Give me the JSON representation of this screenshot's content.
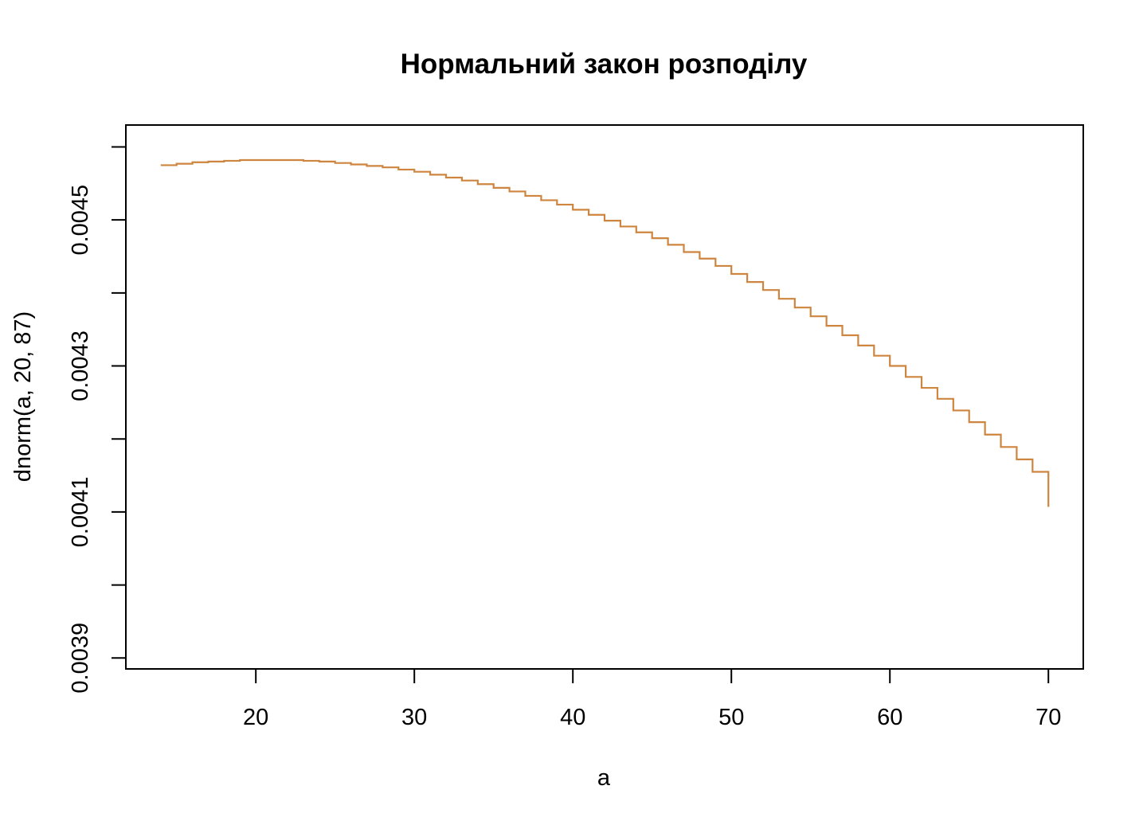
{
  "chart_data": {
    "type": "line",
    "style": "step",
    "title": "Нормальний закон розподілу",
    "xlabel": "a",
    "ylabel": "dnorm(a, 20, 87)",
    "xlim": [
      11.8,
      72.2
    ],
    "ylim": [
      0.003885,
      0.00463
    ],
    "x_ticks": [
      20,
      30,
      40,
      50,
      60,
      70
    ],
    "x_tick_labels": [
      "20",
      "30",
      "40",
      "50",
      "60",
      "70"
    ],
    "y_ticks": [
      0.0039,
      0.004,
      0.0041,
      0.0042,
      0.0043,
      0.0044,
      0.0045,
      0.0046
    ],
    "y_tick_labels": [
      "0.0039",
      "",
      "0.0041",
      "",
      "0.0043",
      "",
      "0.0045",
      ""
    ],
    "grid": false,
    "legend": "none",
    "line_color": "#cd853f",
    "series": [
      {
        "x": [
          14,
          15,
          16,
          17,
          18,
          19,
          20,
          21,
          22,
          23,
          24,
          25,
          26,
          27,
          28,
          29,
          30,
          31,
          32,
          33,
          34,
          35,
          36,
          37,
          38,
          39,
          40,
          41,
          42,
          43,
          44,
          45,
          46,
          47,
          48,
          49,
          50,
          51,
          52,
          53,
          54,
          55,
          56,
          57,
          58,
          59,
          60,
          61,
          62,
          63,
          64,
          65,
          66,
          67,
          68,
          69,
          70
        ],
        "values": [
          0.004575,
          0.004577,
          0.004579,
          0.00458,
          0.004581,
          0.004582,
          0.004582,
          0.004582,
          0.004582,
          0.004581,
          0.00458,
          0.004578,
          0.004576,
          0.004574,
          0.004572,
          0.004569,
          0.004566,
          0.004562,
          0.004558,
          0.004554,
          0.004549,
          0.004544,
          0.004539,
          0.004533,
          0.004527,
          0.004521,
          0.004514,
          0.004507,
          0.004499,
          0.004491,
          0.004483,
          0.004475,
          0.004466,
          0.004456,
          0.004447,
          0.004437,
          0.004426,
          0.004415,
          0.004404,
          0.004392,
          0.00438,
          0.004368,
          0.004355,
          0.004342,
          0.004328,
          0.004314,
          0.0043,
          0.004285,
          0.00427,
          0.004255,
          0.004239,
          0.004223,
          0.004206,
          0.004189,
          0.004172,
          0.004155,
          0.004137
        ]
      }
    ]
  }
}
